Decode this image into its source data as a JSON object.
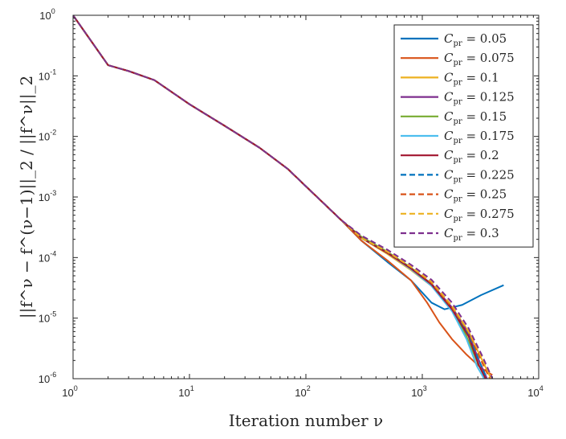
{
  "chart_data": {
    "type": "line",
    "xscale": "log",
    "yscale": "log",
    "xlim": [
      1,
      10000
    ],
    "ylim": [
      1e-06,
      1
    ],
    "grid": false,
    "legend_position": "top-right",
    "xlabel": "Iteration number ν",
    "ylabel": "||f^ν − f^(ν−1)||_2 / ||f^ν||_2",
    "xticks": [
      {
        "value": 1,
        "base": "10",
        "exp": "0"
      },
      {
        "value": 10,
        "base": "10",
        "exp": "1"
      },
      {
        "value": 100,
        "base": "10",
        "exp": "2"
      },
      {
        "value": 1000,
        "base": "10",
        "exp": "3"
      },
      {
        "value": 10000,
        "base": "10",
        "exp": "4"
      }
    ],
    "yticks": [
      {
        "value": 1e-06,
        "base": "10",
        "exp": "-6"
      },
      {
        "value": 1e-05,
        "base": "10",
        "exp": "-5"
      },
      {
        "value": 0.0001,
        "base": "10",
        "exp": "-4"
      },
      {
        "value": 0.001,
        "base": "10",
        "exp": "-3"
      },
      {
        "value": 0.01,
        "base": "10",
        "exp": "-2"
      },
      {
        "value": 0.1,
        "base": "10",
        "exp": "-1"
      },
      {
        "value": 1,
        "base": "10",
        "exp": "0"
      }
    ],
    "common_path": [
      [
        1,
        1.0
      ],
      [
        2,
        0.15
      ],
      [
        3,
        0.12
      ],
      [
        5,
        0.085
      ],
      [
        10,
        0.034
      ],
      [
        20,
        0.015
      ],
      [
        40,
        0.0065
      ],
      [
        70,
        0.0029
      ],
      [
        100,
        0.0015
      ],
      [
        200,
        0.00042
      ]
    ],
    "series": [
      {
        "name": "C_pr = 0.05",
        "legend": {
          "sym": "C",
          "sub": "pr",
          "rest": " = 0.05"
        },
        "color": "#0072BD",
        "dash": "solid",
        "points": [
          [
            300,
            0.00019
          ],
          [
            500,
            8.5e-05
          ],
          [
            800,
            4.2e-05
          ],
          [
            1200,
            1.8e-05
          ],
          [
            1550,
            1.4e-05
          ],
          [
            2200,
            1.65e-05
          ],
          [
            3200,
            2.4e-05
          ],
          [
            5000,
            3.5e-05
          ]
        ]
      },
      {
        "name": "C_pr = 0.075",
        "legend": {
          "sym": "C",
          "sub": "pr",
          "rest": " = 0.075"
        },
        "color": "#D95319",
        "dash": "solid",
        "points": [
          [
            300,
            0.00019
          ],
          [
            500,
            9e-05
          ],
          [
            800,
            4.2e-05
          ],
          [
            1100,
            1.8e-05
          ],
          [
            1400,
            8.5e-06
          ],
          [
            1800,
            4.5e-06
          ],
          [
            2400,
            2.5e-06
          ],
          [
            3200,
            1.5e-06
          ],
          [
            4000,
            1.15e-06
          ]
        ]
      },
      {
        "name": "C_pr = 0.1",
        "legend": {
          "sym": "C",
          "sub": "pr",
          "rest": " = 0.1"
        },
        "color": "#EDB120",
        "dash": "solid",
        "points": [
          [
            300,
            0.00021
          ],
          [
            500,
            0.000115
          ],
          [
            800,
            6.2e-05
          ],
          [
            1200,
            3.4e-05
          ],
          [
            1800,
            1.5e-05
          ],
          [
            2500,
            6e-06
          ],
          [
            3200,
            2.2e-06
          ],
          [
            3900,
            1e-06
          ]
        ]
      },
      {
        "name": "C_pr = 0.125",
        "legend": {
          "sym": "C",
          "sub": "pr",
          "rest": " = 0.125"
        },
        "color": "#7E2F8E",
        "dash": "solid",
        "points": [
          [
            300,
            0.00021
          ],
          [
            500,
            0.00012
          ],
          [
            800,
            6.6e-05
          ],
          [
            1200,
            3.7e-05
          ],
          [
            1800,
            1.5e-05
          ],
          [
            2500,
            5.5e-06
          ],
          [
            3100,
            1.9e-06
          ],
          [
            3600,
            1e-06
          ]
        ]
      },
      {
        "name": "C_pr = 0.15",
        "legend": {
          "sym": "C",
          "sub": "pr",
          "rest": " = 0.15"
        },
        "color": "#77AC30",
        "dash": "solid",
        "points": [
          [
            300,
            0.00022
          ],
          [
            500,
            0.000125
          ],
          [
            800,
            6.8e-05
          ],
          [
            1200,
            3.6e-05
          ],
          [
            1800,
            1.4e-05
          ],
          [
            2400,
            5e-06
          ],
          [
            3000,
            1.8e-06
          ],
          [
            3500,
            1e-06
          ]
        ]
      },
      {
        "name": "C_pr = 0.175",
        "legend": {
          "sym": "C",
          "sub": "pr",
          "rest": " = 0.175"
        },
        "color": "#4DBEEE",
        "dash": "solid",
        "points": [
          [
            300,
            0.00021
          ],
          [
            500,
            0.00012
          ],
          [
            800,
            6.4e-05
          ],
          [
            1200,
            3.4e-05
          ],
          [
            1800,
            1.3e-05
          ],
          [
            2400,
            4.5e-06
          ],
          [
            2950,
            1.6e-06
          ],
          [
            3400,
            1e-06
          ]
        ]
      },
      {
        "name": "C_pr = 0.2",
        "legend": {
          "sym": "C",
          "sub": "pr",
          "rest": " = 0.2"
        },
        "color": "#A2142F",
        "dash": "solid",
        "points": [
          [
            300,
            0.00021
          ],
          [
            500,
            0.00012
          ],
          [
            800,
            6.6e-05
          ],
          [
            1200,
            3.6e-05
          ],
          [
            1800,
            1.4e-05
          ],
          [
            2500,
            5e-06
          ],
          [
            3050,
            1.7e-06
          ],
          [
            3500,
            1e-06
          ]
        ]
      },
      {
        "name": "C_pr = 0.225",
        "legend": {
          "sym": "C",
          "sub": "pr",
          "rest": " = 0.225"
        },
        "color": "#0072BD",
        "dash": "dashed",
        "points": [
          [
            300,
            0.00021
          ],
          [
            500,
            0.000125
          ],
          [
            800,
            7e-05
          ],
          [
            1200,
            3.8e-05
          ],
          [
            1800,
            1.5e-05
          ],
          [
            2500,
            5.5e-06
          ],
          [
            3100,
            1.9e-06
          ],
          [
            3600,
            1e-06
          ]
        ]
      },
      {
        "name": "C_pr = 0.25",
        "legend": {
          "sym": "C",
          "sub": "pr",
          "rest": " = 0.25"
        },
        "color": "#D95319",
        "dash": "dashed",
        "points": [
          [
            300,
            0.00021
          ],
          [
            500,
            0.000125
          ],
          [
            800,
            7e-05
          ],
          [
            1200,
            3.8e-05
          ],
          [
            1800,
            1.5e-05
          ],
          [
            2500,
            5.8e-06
          ],
          [
            3200,
            2e-06
          ],
          [
            3800,
            1e-06
          ]
        ]
      },
      {
        "name": "C_pr = 0.275",
        "legend": {
          "sym": "C",
          "sub": "pr",
          "rest": " = 0.275"
        },
        "color": "#EDB120",
        "dash": "dashed",
        "points": [
          [
            300,
            0.00021
          ],
          [
            500,
            0.000125
          ],
          [
            800,
            7e-05
          ],
          [
            1200,
            4e-05
          ],
          [
            1800,
            1.6e-05
          ],
          [
            2500,
            6e-06
          ],
          [
            3300,
            2.1e-06
          ],
          [
            3900,
            1e-06
          ]
        ]
      },
      {
        "name": "C_pr = 0.3",
        "legend": {
          "sym": "C",
          "sub": "pr",
          "rest": " = 0.3"
        },
        "color": "#7E2F8E",
        "dash": "dashed",
        "points": [
          [
            300,
            0.00023
          ],
          [
            500,
            0.000135
          ],
          [
            800,
            7.6e-05
          ],
          [
            1200,
            4.3e-05
          ],
          [
            1800,
            1.8e-05
          ],
          [
            2500,
            6.8e-06
          ],
          [
            3300,
            2.3e-06
          ],
          [
            4000,
            1e-06
          ]
        ]
      }
    ]
  }
}
